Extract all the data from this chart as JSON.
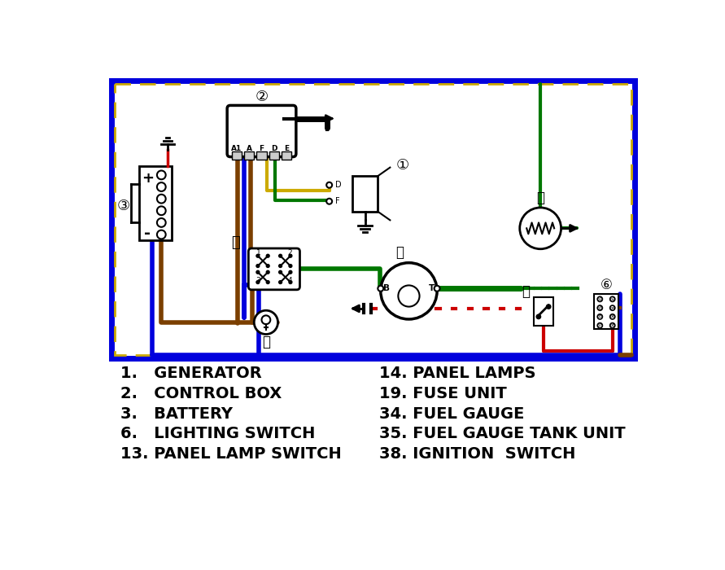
{
  "bg_color": "#ffffff",
  "blue": "#0000dd",
  "brown": "#7B3F00",
  "green": "#007700",
  "yellow": "#ccaa00",
  "red": "#cc0000",
  "black": "#000000",
  "legend_left": [
    "1.   GENERATOR",
    "2.   CONTROL BOX",
    "3.   BATTERY",
    "6.   LIGHTING SWITCH",
    "13. PANEL LAMP SWITCH"
  ],
  "legend_right": [
    "14. PANEL LAMPS",
    "19. FUSE UNIT",
    "34. FUEL GAUGE",
    "35. FUEL GAUGE TANK UNIT",
    "38. IGNITION  SWITCH"
  ]
}
